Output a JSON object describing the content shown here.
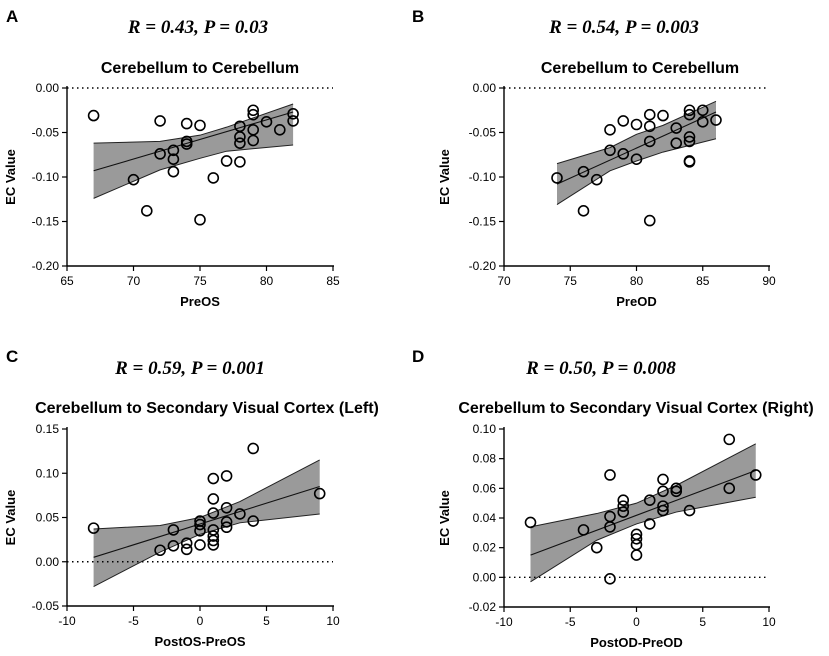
{
  "chart_data": [
    {
      "type": "scatter",
      "panel": "A",
      "stat": "R = 0.43, P = 0.03",
      "title": "Cerebellum to Cerebellum",
      "xlabel": "PreOS",
      "ylabel": "EC Value",
      "xlim": [
        65,
        85
      ],
      "ylim": [
        -0.2,
        0.0
      ],
      "xticks": [
        "65",
        "70",
        "75",
        "80",
        "85"
      ],
      "yticks": [
        "0.00",
        "-0.05",
        "-0.10",
        "-0.15",
        "-0.20"
      ],
      "xtick_values": [
        65,
        70,
        75,
        80,
        85
      ],
      "ytick_values": [
        0.0,
        -0.05,
        -0.1,
        -0.15,
        -0.2
      ],
      "reference_line": 0,
      "fit": {
        "x": [
          67,
          82
        ],
        "y": [
          -0.093,
          -0.027
        ]
      },
      "ci": {
        "x": [
          67,
          72,
          75,
          77,
          82
        ],
        "lower": [
          -0.124,
          -0.092,
          -0.079,
          -0.071,
          -0.064
        ],
        "upper": [
          -0.062,
          -0.06,
          -0.053,
          -0.044,
          -0.018
        ]
      },
      "points": [
        {
          "x": 67,
          "y": -0.031
        },
        {
          "x": 70,
          "y": -0.103
        },
        {
          "x": 71,
          "y": -0.138
        },
        {
          "x": 72,
          "y": -0.037
        },
        {
          "x": 72,
          "y": -0.074
        },
        {
          "x": 73,
          "y": -0.07
        },
        {
          "x": 73,
          "y": -0.08
        },
        {
          "x": 73,
          "y": -0.094
        },
        {
          "x": 74,
          "y": -0.04
        },
        {
          "x": 74,
          "y": -0.06
        },
        {
          "x": 74,
          "y": -0.063
        },
        {
          "x": 75,
          "y": -0.042
        },
        {
          "x": 75,
          "y": -0.148
        },
        {
          "x": 76,
          "y": -0.101
        },
        {
          "x": 77,
          "y": -0.082
        },
        {
          "x": 78,
          "y": -0.043
        },
        {
          "x": 78,
          "y": -0.055
        },
        {
          "x": 78,
          "y": -0.062
        },
        {
          "x": 78,
          "y": -0.083
        },
        {
          "x": 79,
          "y": -0.025
        },
        {
          "x": 79,
          "y": -0.03
        },
        {
          "x": 79,
          "y": -0.047
        },
        {
          "x": 79,
          "y": -0.059
        },
        {
          "x": 80,
          "y": -0.038
        },
        {
          "x": 81,
          "y": -0.047
        },
        {
          "x": 82,
          "y": -0.029
        },
        {
          "x": 82,
          "y": -0.037
        }
      ]
    },
    {
      "type": "scatter",
      "panel": "B",
      "stat": "R = 0.54, P = 0.003",
      "title": "Cerebellum to Cerebellum",
      "xlabel": "PreOD",
      "ylabel": "EC Value",
      "xlim": [
        70,
        90
      ],
      "ylim": [
        -0.2,
        0.0
      ],
      "xticks": [
        "70",
        "75",
        "80",
        "85",
        "90"
      ],
      "yticks": [
        "0.00",
        "-0.05",
        "-0.10",
        "-0.15",
        "-0.20"
      ],
      "xtick_values": [
        70,
        75,
        80,
        85,
        90
      ],
      "ytick_values": [
        0.0,
        -0.05,
        -0.1,
        -0.15,
        -0.2
      ],
      "reference_line": 0,
      "fit": {
        "x": [
          74,
          86
        ],
        "y": [
          -0.108,
          -0.027
        ]
      },
      "ci": {
        "x": [
          74,
          78,
          80,
          82,
          86
        ],
        "lower": [
          -0.131,
          -0.093,
          -0.082,
          -0.072,
          -0.057
        ],
        "upper": [
          -0.085,
          -0.067,
          -0.052,
          -0.042,
          -0.015
        ]
      },
      "points": [
        {
          "x": 74,
          "y": -0.101
        },
        {
          "x": 76,
          "y": -0.094
        },
        {
          "x": 76,
          "y": -0.138
        },
        {
          "x": 77,
          "y": -0.103
        },
        {
          "x": 78,
          "y": -0.047
        },
        {
          "x": 78,
          "y": -0.07
        },
        {
          "x": 79,
          "y": -0.037
        },
        {
          "x": 79,
          "y": -0.074
        },
        {
          "x": 80,
          "y": -0.041
        },
        {
          "x": 80,
          "y": -0.08
        },
        {
          "x": 81,
          "y": -0.03
        },
        {
          "x": 81,
          "y": -0.043
        },
        {
          "x": 81,
          "y": -0.06
        },
        {
          "x": 81,
          "y": -0.149
        },
        {
          "x": 82,
          "y": -0.031
        },
        {
          "x": 83,
          "y": -0.045
        },
        {
          "x": 83,
          "y": -0.062
        },
        {
          "x": 84,
          "y": -0.025
        },
        {
          "x": 84,
          "y": -0.03
        },
        {
          "x": 84,
          "y": -0.055
        },
        {
          "x": 84,
          "y": -0.06
        },
        {
          "x": 84,
          "y": -0.082
        },
        {
          "x": 84,
          "y": -0.083
        },
        {
          "x": 85,
          "y": -0.025
        },
        {
          "x": 85,
          "y": -0.038
        },
        {
          "x": 86,
          "y": -0.036
        }
      ]
    },
    {
      "type": "scatter",
      "panel": "C",
      "stat": "R = 0.59, P = 0.001",
      "title": "Cerebellum to Secondary Visual Cortex (Left)",
      "xlabel": "PostOS-PreOS",
      "ylabel": "EC Value",
      "xlim": [
        -10,
        10
      ],
      "ylim": [
        -0.05,
        0.15
      ],
      "xticks": [
        "-10",
        "-5",
        "0",
        "5",
        "10"
      ],
      "yticks": [
        "0.15",
        "0.10",
        "0.05",
        "0.00",
        "-0.05"
      ],
      "xtick_values": [
        -10,
        -5,
        0,
        5,
        10
      ],
      "ytick_values": [
        0.15,
        0.1,
        0.05,
        0.0,
        -0.05
      ],
      "reference_line": 0,
      "fit": {
        "x": [
          -8,
          9
        ],
        "y": [
          0.005,
          0.085
        ]
      },
      "ci": {
        "x": [
          -8,
          -3,
          0,
          3,
          9
        ],
        "lower": [
          -0.028,
          0.011,
          0.031,
          0.044,
          0.054
        ],
        "upper": [
          0.037,
          0.041,
          0.05,
          0.068,
          0.115
        ]
      },
      "points": [
        {
          "x": -8,
          "y": 0.038
        },
        {
          "x": -3,
          "y": 0.013
        },
        {
          "x": -2,
          "y": 0.018
        },
        {
          "x": -2,
          "y": 0.036
        },
        {
          "x": -1,
          "y": 0.014
        },
        {
          "x": -1,
          "y": 0.021
        },
        {
          "x": 0,
          "y": 0.019
        },
        {
          "x": 0,
          "y": 0.035
        },
        {
          "x": 0,
          "y": 0.042
        },
        {
          "x": 0,
          "y": 0.046
        },
        {
          "x": 1,
          "y": 0.019
        },
        {
          "x": 1,
          "y": 0.024
        },
        {
          "x": 1,
          "y": 0.029
        },
        {
          "x": 1,
          "y": 0.036
        },
        {
          "x": 1,
          "y": 0.055
        },
        {
          "x": 1,
          "y": 0.071
        },
        {
          "x": 1,
          "y": 0.094
        },
        {
          "x": 2,
          "y": 0.039
        },
        {
          "x": 2,
          "y": 0.045
        },
        {
          "x": 2,
          "y": 0.061
        },
        {
          "x": 2,
          "y": 0.097
        },
        {
          "x": 3,
          "y": 0.054
        },
        {
          "x": 4,
          "y": 0.046
        },
        {
          "x": 4,
          "y": 0.128
        },
        {
          "x": 9,
          "y": 0.077
        }
      ]
    },
    {
      "type": "scatter",
      "panel": "D",
      "stat": "R = 0.50, P = 0.008",
      "title": "Cerebellum to Secondary Visual Cortex (Right)",
      "xlabel": "PostOD-PreOD",
      "ylabel": "EC Value",
      "xlim": [
        -10,
        10
      ],
      "ylim": [
        -0.02,
        0.1
      ],
      "xticks": [
        "-10",
        "-5",
        "0",
        "5",
        "10"
      ],
      "yticks": [
        "0.10",
        "0.08",
        "0.06",
        "0.04",
        "0.02",
        "0.00",
        "-0.02"
      ],
      "xtick_values": [
        -10,
        -5,
        0,
        5,
        10
      ],
      "ytick_values": [
        0.1,
        0.08,
        0.06,
        0.04,
        0.02,
        0.0,
        -0.02
      ],
      "reference_line": 0,
      "fit": {
        "x": [
          -8,
          9
        ],
        "y": [
          0.015,
          0.072
        ]
      },
      "ci": {
        "x": [
          -8,
          -3,
          0,
          3,
          9
        ],
        "lower": [
          -0.003,
          0.025,
          0.036,
          0.044,
          0.054
        ],
        "upper": [
          0.034,
          0.043,
          0.05,
          0.062,
          0.09
        ]
      },
      "points": [
        {
          "x": -8,
          "y": 0.037
        },
        {
          "x": -4,
          "y": 0.032
        },
        {
          "x": -3,
          "y": 0.02
        },
        {
          "x": -2,
          "y": -0.001
        },
        {
          "x": -2,
          "y": 0.034
        },
        {
          "x": -2,
          "y": 0.041
        },
        {
          "x": -2,
          "y": 0.069
        },
        {
          "x": -1,
          "y": 0.044
        },
        {
          "x": -1,
          "y": 0.048
        },
        {
          "x": -1,
          "y": 0.052
        },
        {
          "x": 0,
          "y": 0.015
        },
        {
          "x": 0,
          "y": 0.022
        },
        {
          "x": 0,
          "y": 0.026
        },
        {
          "x": 0,
          "y": 0.029
        },
        {
          "x": 1,
          "y": 0.036
        },
        {
          "x": 1,
          "y": 0.052
        },
        {
          "x": 2,
          "y": 0.045
        },
        {
          "x": 2,
          "y": 0.048
        },
        {
          "x": 2,
          "y": 0.058
        },
        {
          "x": 2,
          "y": 0.066
        },
        {
          "x": 3,
          "y": 0.058
        },
        {
          "x": 3,
          "y": 0.06
        },
        {
          "x": 4,
          "y": 0.045
        },
        {
          "x": 7,
          "y": 0.06
        },
        {
          "x": 7,
          "y": 0.093
        },
        {
          "x": 9,
          "y": 0.069
        }
      ]
    }
  ]
}
